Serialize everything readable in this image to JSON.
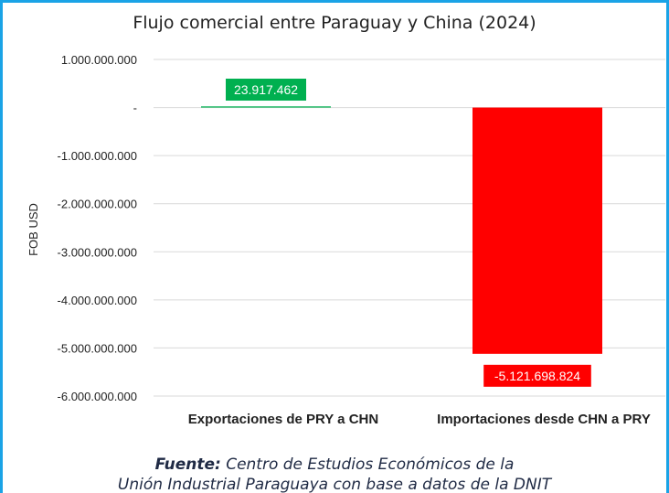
{
  "chart_data": {
    "type": "bar",
    "title": "Flujo comercial entre Paraguay y China (2024)",
    "ylabel": "FOB USD",
    "xlabel": "",
    "categories": [
      "Exportaciones de PRY a CHN",
      "Importaciones desde CHN a PRY"
    ],
    "values": [
      23917462,
      -5121698824
    ],
    "data_labels": [
      "23.917.462",
      "-5.121.698.824"
    ],
    "bar_colors": [
      "#00b050",
      "#ff0000"
    ],
    "ylim": [
      -6000000000,
      1000000000
    ],
    "yticks": [
      1000000000,
      0,
      -1000000000,
      -2000000000,
      -3000000000,
      -4000000000,
      -5000000000,
      -6000000000
    ],
    "ytick_labels": [
      "1.000.000.000",
      "-",
      "-1.000.000.000",
      "-2.000.000.000",
      "-3.000.000.000",
      "-4.000.000.000",
      "-5.000.000.000",
      "-6.000.000.000"
    ],
    "grid": true
  },
  "source": {
    "label": "Fuente:",
    "text_line1": " Centro de Estudios Económicos de la",
    "text_line2": "Unión Industrial Paraguaya con base a datos de la DNIT"
  },
  "colors": {
    "frame": "#1aa3e6",
    "grid": "#d9d9d9"
  }
}
